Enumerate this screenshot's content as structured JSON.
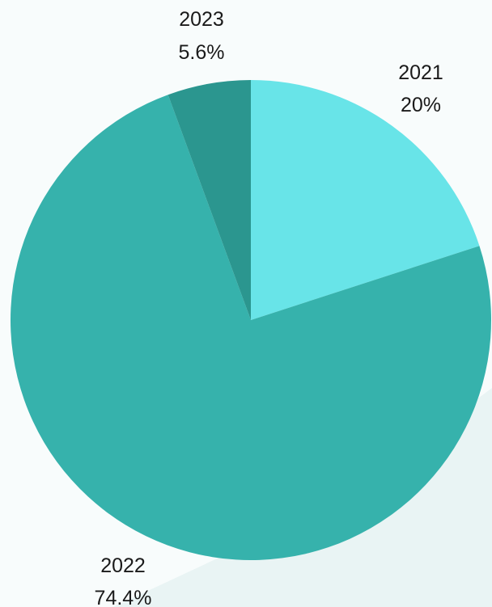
{
  "colors": {
    "background": "#f8fcfc",
    "shadow": "#e9f4f4"
  },
  "chart_data": {
    "type": "pie",
    "start_angle_deg": 0,
    "direction": "clockwise",
    "legend": "none",
    "slices": [
      {
        "label": "2021",
        "value": 20,
        "display": "20%",
        "color": "#68e4e8"
      },
      {
        "label": "2022",
        "value": 74.4,
        "display": "74.4%",
        "color": "#36b2ac"
      },
      {
        "label": "2023",
        "value": 5.6,
        "display": "5.6%",
        "color": "#2b968f"
      }
    ]
  }
}
